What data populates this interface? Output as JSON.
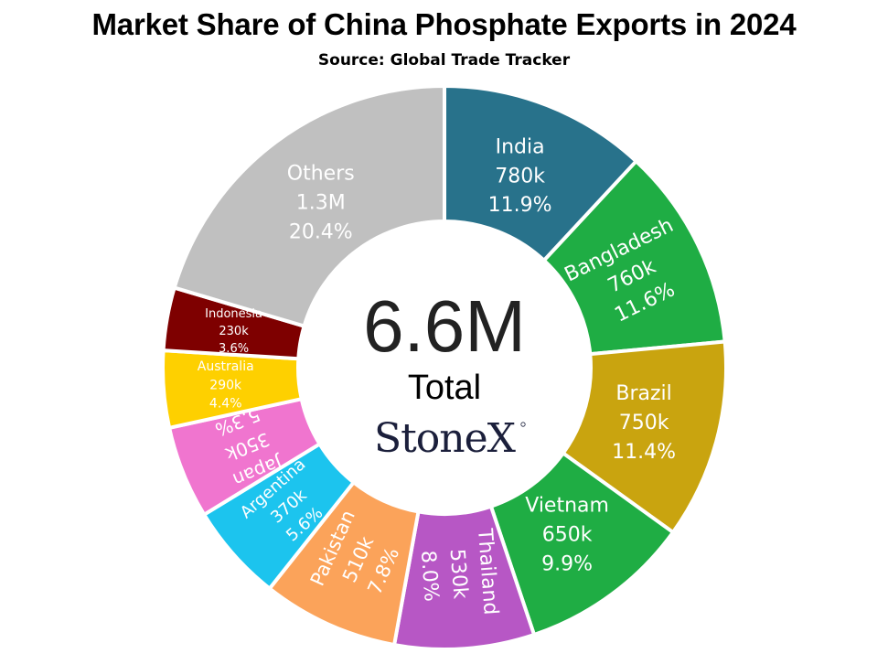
{
  "header": {
    "title": "Market Share of China Phosphate Exports in 2024",
    "subtitle": "Source: Global Trade Tracker"
  },
  "center": {
    "value": "6.6M",
    "label": "Total",
    "brand": "StoneX"
  },
  "chart_data": {
    "type": "pie",
    "style": "donut",
    "title": "Market Share of China Phosphate Exports in 2024",
    "subtitle": "Source: Global Trade Tracker",
    "total": "6.6M",
    "slices": [
      {
        "name": "India",
        "value_label": "780k",
        "share_label": "11.9%",
        "share": 11.9,
        "color": "#28728b"
      },
      {
        "name": "Bangladesh",
        "value_label": "760k",
        "share_label": "11.6%",
        "share": 11.6,
        "color": "#1fad44"
      },
      {
        "name": "Brazil",
        "value_label": "750k",
        "share_label": "11.4%",
        "share": 11.4,
        "color": "#c9a40f"
      },
      {
        "name": "Vietnam",
        "value_label": "650k",
        "share_label": "9.9%",
        "share": 9.9,
        "color": "#1fad44"
      },
      {
        "name": "Thailand",
        "value_label": "530k",
        "share_label": "8.0%",
        "share": 8.0,
        "color": "#b757c5"
      },
      {
        "name": "Pakistan",
        "value_label": "510k",
        "share_label": "7.8%",
        "share": 7.8,
        "color": "#fba35a"
      },
      {
        "name": "Argentina",
        "value_label": "370k",
        "share_label": "5.6%",
        "share": 5.6,
        "color": "#1cc4ee"
      },
      {
        "name": "Japan",
        "value_label": "350k",
        "share_label": "5.3%",
        "share": 5.3,
        "color": "#f075cf"
      },
      {
        "name": "Australia",
        "value_label": "290k",
        "share_label": "4.4%",
        "share": 4.4,
        "color": "#fed000"
      },
      {
        "name": "Indonesia",
        "value_label": "230k",
        "share_label": "3.6%",
        "share": 3.6,
        "color": "#7e0000"
      },
      {
        "name": "Others",
        "value_label": "1.3M",
        "share_label": "20.4%",
        "share": 20.4,
        "color": "#c0c0c0"
      }
    ]
  }
}
